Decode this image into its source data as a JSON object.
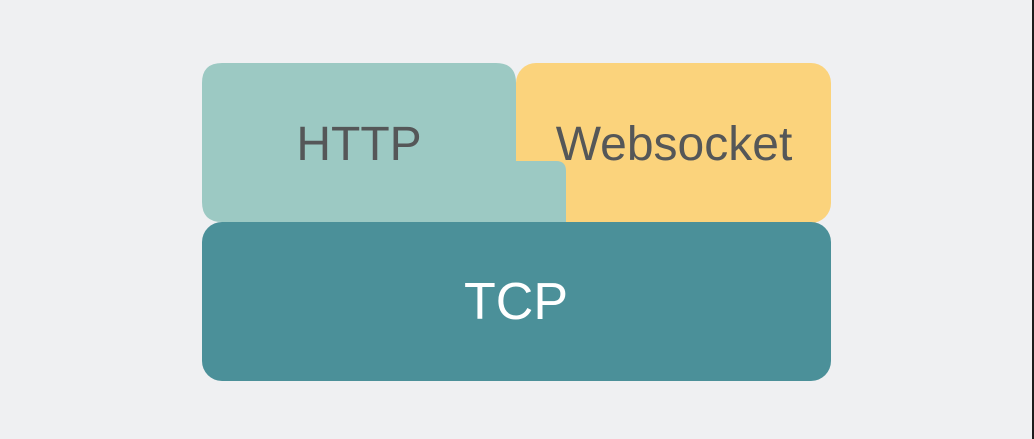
{
  "diagram": {
    "layers": {
      "http": {
        "label": "HTTP",
        "color": "#9cc9c3",
        "text_color": "#555758"
      },
      "websocket": {
        "label": "Websocket",
        "color": "#fbd37c",
        "text_color": "#555758"
      },
      "tcp": {
        "label": "TCP",
        "color": "#4b9099",
        "text_color": "#ffffff"
      }
    },
    "background": "#eff0f2"
  }
}
